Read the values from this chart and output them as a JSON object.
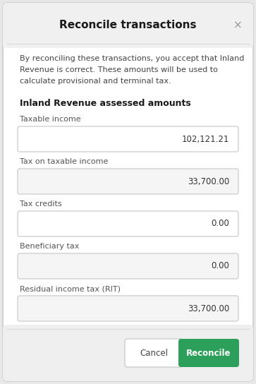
{
  "title": "Reconcile transactions",
  "close_symbol": "×",
  "description_lines": [
    "By reconciling these transactions, you accept that Inland",
    "Revenue is correct. These amounts will be used to",
    "calculate provisional and terminal tax."
  ],
  "section_header": "Inland Revenue assessed amounts",
  "fields": [
    {
      "label": "Taxable income",
      "value": "102,121.21",
      "field_bg": "#ffffff"
    },
    {
      "label": "Tax on taxable income",
      "value": "33,700.00",
      "field_bg": "#f5f5f5"
    },
    {
      "label": "Tax credits",
      "value": "0.00",
      "field_bg": "#ffffff"
    },
    {
      "label": "Beneficiary tax",
      "value": "0.00",
      "field_bg": "#f5f5f5"
    },
    {
      "label": "Residual income tax (RIT)",
      "value": "33,700.00",
      "field_bg": "#f5f5f5"
    }
  ],
  "cancel_button_text": "Cancel",
  "reconcile_button_text": "Reconcile",
  "outer_bg": "#e8e8e8",
  "dialog_bg": "#ffffff",
  "header_bg": "#f0f0f0",
  "footer_bg": "#efefef",
  "title_color": "#1a1a1a",
  "text_color": "#444444",
  "field_label_color": "#555555",
  "field_value_color": "#333333",
  "field_border": "#d0d0d0",
  "section_header_color": "#1a1a1a",
  "cancel_btn_bg": "#ffffff",
  "cancel_btn_border": "#cccccc",
  "cancel_btn_text_color": "#444444",
  "reconcile_btn_bg": "#2ca05a",
  "reconcile_btn_text_color": "#ffffff",
  "separator_color": "#dddddd",
  "close_color": "#999999",
  "dialog_border_color": "#cccccc"
}
